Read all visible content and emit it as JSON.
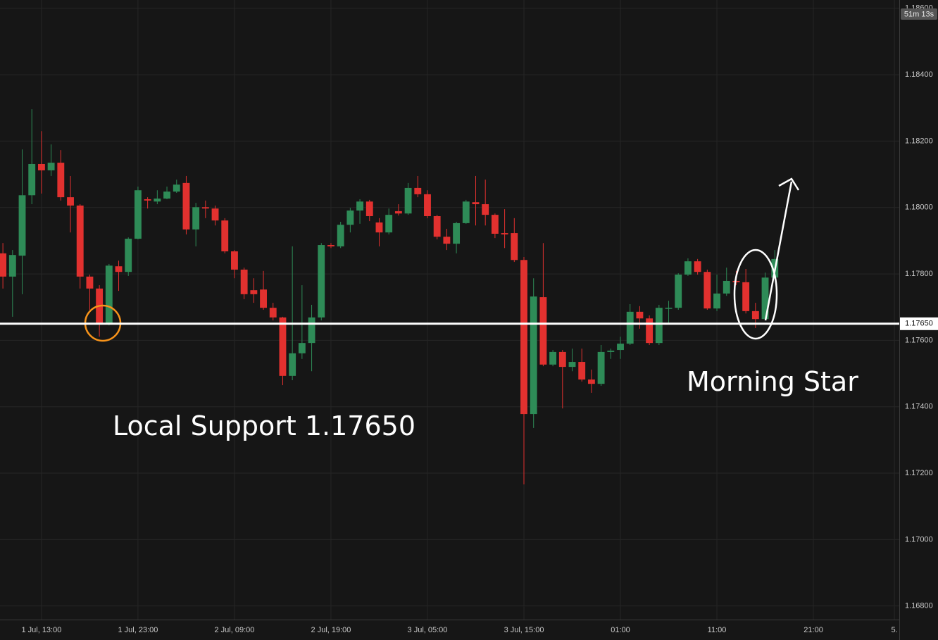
{
  "chart_data": {
    "type": "candlestick",
    "up_color": "#2e8b57",
    "down_color": "#e2312f",
    "grid": true,
    "xlim": [
      -0.3,
      92.9
    ],
    "ylim": [
      1.16759,
      1.18625
    ],
    "yticks": [
      {
        "value": 1.186,
        "label": "1.18600"
      },
      {
        "value": 1.184,
        "label": "1.18400"
      },
      {
        "value": 1.182,
        "label": "1.18200"
      },
      {
        "value": 1.18,
        "label": "1.18000"
      },
      {
        "value": 1.178,
        "label": "1.17800"
      },
      {
        "value": 1.176,
        "label": "1.17600"
      },
      {
        "value": 1.174,
        "label": "1.17400"
      },
      {
        "value": 1.172,
        "label": "1.17200"
      },
      {
        "value": 1.17,
        "label": "1.17000"
      },
      {
        "value": 1.168,
        "label": "1.16800"
      }
    ],
    "xticks": [
      {
        "value": 4,
        "label": "1 Jul, 13:00"
      },
      {
        "value": 14,
        "label": "1 Jul, 23:00"
      },
      {
        "value": 24,
        "label": "2 Jul, 09:00"
      },
      {
        "value": 34,
        "label": "2 Jul, 19:00"
      },
      {
        "value": 44,
        "label": "3 Jul, 05:00"
      },
      {
        "value": 54,
        "label": "3 Jul, 15:00"
      },
      {
        "value": 64,
        "label": "01:00"
      },
      {
        "value": 74,
        "label": "11:00"
      },
      {
        "value": 84,
        "label": "21:00"
      },
      {
        "value": 92.4,
        "label": "5."
      }
    ],
    "open": [
      1.17862,
      1.17792,
      1.17855,
      1.18037,
      1.18131,
      1.18112,
      1.18135,
      1.18031,
      1.18006,
      1.17792,
      1.17756,
      1.1765,
      1.17823,
      1.17806,
      1.17906,
      1.18025,
      1.18018,
      1.18027,
      1.18048,
      1.18074,
      1.17934,
      1.18001,
      1.17997,
      1.17961,
      1.17868,
      1.17813,
      1.17751,
      1.17753,
      1.17698,
      1.17669,
      1.17493,
      1.17561,
      1.17592,
      1.17669,
      1.17887,
      1.17883,
      1.17948,
      1.17991,
      1.18018,
      1.17955,
      1.17925,
      1.17989,
      1.17982,
      1.18059,
      1.1804,
      1.17974,
      1.17912,
      1.17891,
      1.17953,
      1.18016,
      1.1801,
      1.17978,
      1.17923,
      1.17923,
      1.17842,
      1.17378,
      1.1773,
      1.17527,
      1.17565,
      1.1752,
      1.17535,
      1.17482,
      1.17469,
      1.17565,
      1.17571,
      1.1759,
      1.17686,
      1.17666,
      1.17592,
      1.17696,
      1.17698,
      1.17798,
      1.17838,
      1.17806,
      1.17696,
      1.17741,
      1.17779,
      1.17775,
      1.17688,
      1.17664,
      1.17789
    ],
    "high": [
      1.17893,
      1.17872,
      1.18175,
      1.18296,
      1.1823,
      1.1819,
      1.18173,
      1.18095,
      1.1801,
      1.17798,
      1.17766,
      1.1783,
      1.1784,
      1.1791,
      1.18063,
      1.18031,
      1.18052,
      1.18063,
      1.18084,
      1.18095,
      1.18014,
      1.18021,
      1.18006,
      1.17968,
      1.17872,
      1.17819,
      1.17787,
      1.17809,
      1.17713,
      1.17671,
      1.17883,
      1.17766,
      1.17707,
      1.17893,
      1.17893,
      1.17957,
      1.17999,
      1.18025,
      1.18023,
      1.17968,
      1.17997,
      1.1801,
      1.18074,
      1.18095,
      1.18052,
      1.17978,
      1.17936,
      1.17957,
      1.18023,
      1.18095,
      1.18084,
      1.17982,
      1.17995,
      1.17968,
      1.17851,
      1.17787,
      1.17893,
      1.17571,
      1.17571,
      1.17575,
      1.17575,
      1.17512,
      1.17586,
      1.17575,
      1.17611,
      1.17709,
      1.17703,
      1.17675,
      1.17707,
      1.17719,
      1.17802,
      1.17847,
      1.17845,
      1.17813,
      1.17798,
      1.17819,
      1.17809,
      1.17815,
      1.17713,
      1.17804,
      1.17872
    ],
    "low": [
      1.17756,
      1.17671,
      1.17739,
      1.1801,
      1.18042,
      1.18095,
      1.18021,
      1.17925,
      1.17756,
      1.17692,
      1.17611,
      1.17645,
      1.17749,
      1.17794,
      1.17904,
      1.17997,
      1.1801,
      1.18025,
      1.18044,
      1.17919,
      1.17883,
      1.17968,
      1.17946,
      1.17862,
      1.17787,
      1.17724,
      1.17713,
      1.17692,
      1.1766,
      1.17465,
      1.1748,
      1.17544,
      1.17507,
      1.1766,
      1.17878,
      1.17878,
      1.17925,
      1.17951,
      1.17959,
      1.17883,
      1.17919,
      1.17976,
      1.17978,
      1.18031,
      1.17968,
      1.17904,
      1.17872,
      1.17862,
      1.17951,
      1.17946,
      1.17946,
      1.17908,
      1.17878,
      1.17836,
      1.17166,
      1.17336,
      1.17522,
      1.17522,
      1.17395,
      1.17507,
      1.17476,
      1.17442,
      1.17463,
      1.17544,
      1.17544,
      1.17586,
      1.17635,
      1.17586,
      1.17586,
      1.1765,
      1.17692,
      1.17794,
      1.17798,
      1.17692,
      1.17688,
      1.17734,
      1.17766,
      1.17681,
      1.17637,
      1.1766,
      1.17785
    ],
    "close": [
      1.17792,
      1.17857,
      1.18037,
      1.18131,
      1.18112,
      1.18135,
      1.18031,
      1.18006,
      1.17792,
      1.17756,
      1.1765,
      1.17825,
      1.17806,
      1.17906,
      1.18052,
      1.18021,
      1.18027,
      1.18048,
      1.18069,
      1.17934,
      1.18001,
      1.17997,
      1.17961,
      1.17868,
      1.17813,
      1.17739,
      1.17739,
      1.17698,
      1.17669,
      1.17493,
      1.17561,
      1.17592,
      1.17669,
      1.17887,
      1.17883,
      1.17948,
      1.17991,
      1.18018,
      1.17974,
      1.17925,
      1.17978,
      1.17982,
      1.18059,
      1.1804,
      1.17974,
      1.17912,
      1.17891,
      1.17953,
      1.18018,
      1.1801,
      1.17978,
      1.17921,
      1.17919,
      1.17842,
      1.17378,
      1.17732,
      1.17527,
      1.17565,
      1.1752,
      1.17535,
      1.17482,
      1.17469,
      1.17565,
      1.17569,
      1.1759,
      1.17686,
      1.17666,
      1.17592,
      1.17698,
      1.17698,
      1.17798,
      1.17838,
      1.17806,
      1.17696,
      1.17741,
      1.17779,
      1.17775,
      1.17688,
      1.17664,
      1.17789,
      1.17845
    ],
    "support": {
      "value": 1.1765,
      "label": "1.17650",
      "color": "#ffffff"
    },
    "timer": "51m 13s",
    "annotations": [
      {
        "text": "Local Support 1.17650"
      },
      {
        "text": "Morning Star"
      }
    ]
  }
}
